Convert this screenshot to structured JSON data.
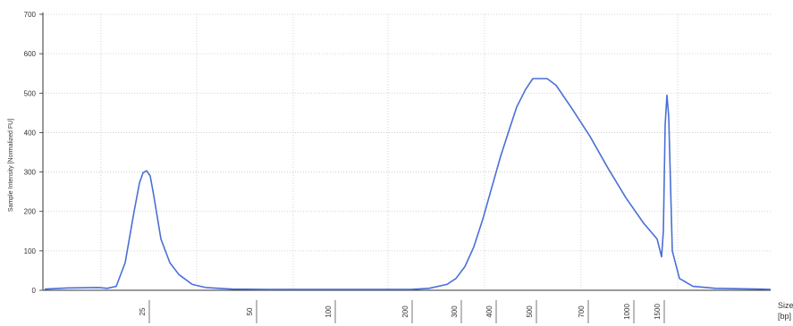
{
  "chart_data": {
    "type": "line",
    "ylabel": "Sample Intensity [Normalized FU]",
    "xlabel_line1": "Size",
    "xlabel_line2": "[bp]",
    "ylim": [
      0,
      700
    ],
    "y_ticks": [
      0,
      100,
      200,
      300,
      400,
      500,
      600,
      700
    ],
    "x_ticks": [
      "25",
      "50",
      "100",
      "200",
      "300",
      "400",
      "500",
      "700",
      "1000",
      "1500"
    ],
    "grid": true,
    "series_color": "#4a6fd6",
    "series": [
      {
        "points": [
          [
            50,
            3
          ],
          [
            75,
            6
          ],
          [
            110,
            7
          ],
          [
            120,
            5
          ],
          [
            130,
            10
          ],
          [
            140,
            70
          ],
          [
            150,
            200
          ],
          [
            156,
            272
          ],
          [
            160,
            298
          ],
          [
            164,
            303
          ],
          [
            168,
            290
          ],
          [
            172,
            240
          ],
          [
            180,
            130
          ],
          [
            190,
            70
          ],
          [
            200,
            40
          ],
          [
            215,
            15
          ],
          [
            230,
            7
          ],
          [
            260,
            3
          ],
          [
            300,
            2
          ],
          [
            400,
            2
          ],
          [
            460,
            2
          ],
          [
            480,
            5
          ],
          [
            500,
            15
          ],
          [
            510,
            30
          ],
          [
            520,
            60
          ],
          [
            530,
            110
          ],
          [
            540,
            180
          ],
          [
            550,
            260
          ],
          [
            560,
            340
          ],
          [
            570,
            410
          ],
          [
            578,
            465
          ],
          [
            588,
            510
          ],
          [
            596,
            537
          ],
          [
            612,
            537
          ],
          [
            622,
            520
          ],
          [
            640,
            460
          ],
          [
            660,
            390
          ],
          [
            680,
            310
          ],
          [
            700,
            235
          ],
          [
            720,
            170
          ],
          [
            735,
            130
          ],
          [
            740,
            85
          ],
          [
            742,
            150
          ],
          [
            744,
            420
          ],
          [
            746,
            495
          ],
          [
            748,
            440
          ],
          [
            752,
            100
          ],
          [
            760,
            30
          ],
          [
            775,
            10
          ],
          [
            800,
            5
          ],
          [
            850,
            3
          ],
          [
            862,
            2
          ]
        ]
      }
    ]
  }
}
